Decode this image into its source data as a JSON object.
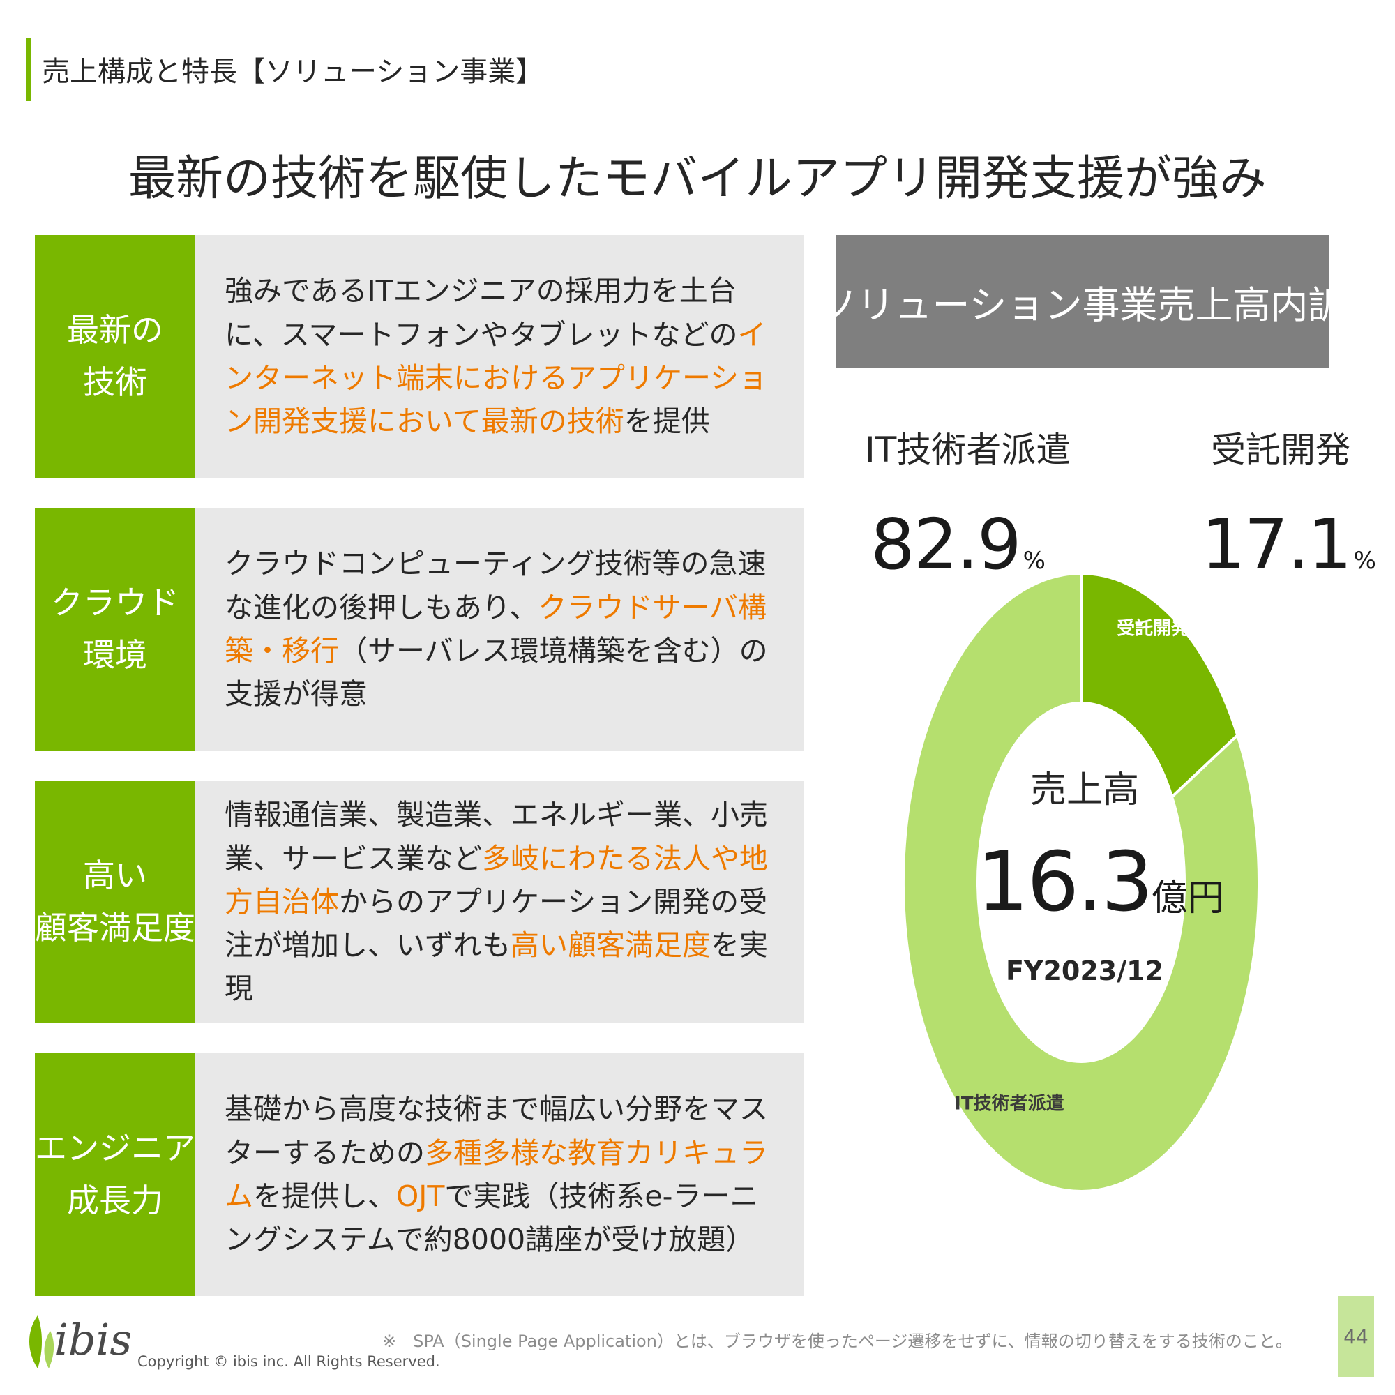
{
  "header": {
    "section_label": "売上構成と特長【ソリューション事業】",
    "headline": "最新の技術を駆使したモバイルアプリ開発支援が強み"
  },
  "features": [
    {
      "label_lines": [
        "最新の",
        "技術"
      ],
      "body": [
        {
          "text": "強みであるITエンジニアの採用力を土台に、スマートフォンやタブレットなどの",
          "highlight": false
        },
        {
          "text": "インターネット端末におけるアプリケーション開発支援において最新の技術",
          "highlight": true
        },
        {
          "text": "を提供",
          "highlight": false
        }
      ]
    },
    {
      "label_lines": [
        "クラウド",
        "環境"
      ],
      "body": [
        {
          "text": "クラウドコンピューティング技術等の急速な進化の後押しもあり、",
          "highlight": false
        },
        {
          "text": "クラウドサーバ構築・移行",
          "highlight": true
        },
        {
          "text": "（サーバレス環境構築を含む）の支援が得意",
          "highlight": false
        }
      ]
    },
    {
      "label_lines": [
        "高い",
        "顧客満足度"
      ],
      "body": [
        {
          "text": "情報通信業、製造業、エネルギー業、小売業、サービス業など",
          "highlight": false
        },
        {
          "text": "多岐にわたる法人や地方自治体",
          "highlight": true
        },
        {
          "text": "からのアプリケーション開発の受注が増加し、いずれも",
          "highlight": false
        },
        {
          "text": "高い顧客満足度",
          "highlight": true
        },
        {
          "text": "を実現",
          "highlight": false
        }
      ]
    },
    {
      "label_lines": [
        "エンジニア",
        "成長力"
      ],
      "body": [
        {
          "text": "基礎から高度な技術まで幅広い分野をマスターするための",
          "highlight": false
        },
        {
          "text": "多種多様な教育カリキュラム",
          "highlight": true
        },
        {
          "text": "を提供し、",
          "highlight": false
        },
        {
          "text": "OJT",
          "highlight": true
        },
        {
          "text": "で実践（技術系e-ラーニングシステムで約8000講座が受け放題）",
          "highlight": false
        }
      ]
    }
  ],
  "panel": {
    "title": "ソリューション事業売上高内訳",
    "segments": [
      {
        "name": "IT技術者派遣",
        "percent": "82.9",
        "unit": "%"
      },
      {
        "name": "受託開発",
        "percent": "17.1",
        "unit": "%"
      }
    ],
    "center": {
      "label": "売上高",
      "value": "16.3",
      "unit": "億円",
      "period": "FY2023/12"
    }
  },
  "chart_data": {
    "type": "pie",
    "donut": true,
    "series": [
      {
        "values": [
          17.1,
          82.9
        ],
        "categories": [
          "受託開発",
          "IT技術者派遣"
        ],
        "colors": [
          "#79b700",
          "#b5df6e"
        ]
      }
    ],
    "slice_labels": [
      "受託開発",
      "IT技術者派遣"
    ],
    "start_angle_deg": 0,
    "direction": "clockwise"
  },
  "footer": {
    "footnote": "※　SPA（Single Page Application）とは、ブラウザを使ったページ遷移をせずに、情報の切り替えをする技術のこと。",
    "logo_text": "ibis",
    "copyright": "Copyright © ibis inc. All Rights Reserved.",
    "page_number": "44"
  },
  "colors": {
    "accent_green": "#79b700",
    "light_green": "#b5df6e",
    "highlight_orange": "#ee7a00",
    "panel_gray": "#7f7f7f",
    "card_gray": "#e8e8e8"
  }
}
